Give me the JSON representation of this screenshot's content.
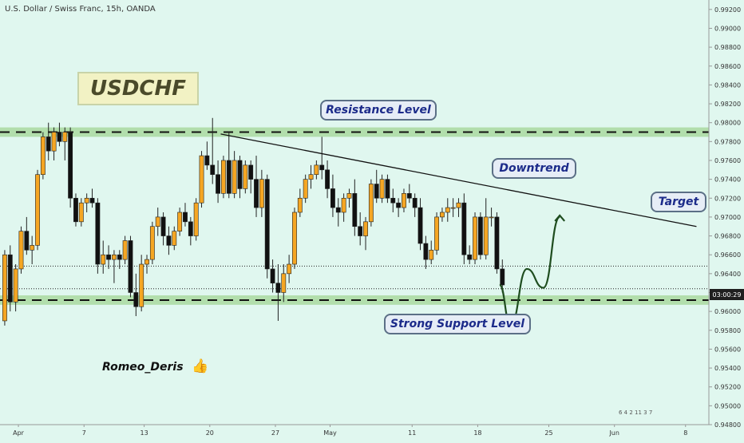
{
  "header": {
    "title": "U.S. Dollar / Swiss Franc, 15h, OANDA"
  },
  "annotations": {
    "symbol_box": "USDCHF",
    "resistance": "Resistance Level",
    "downtrend": "Downtrend",
    "target": "Target",
    "support": "Strong Support Level",
    "author": "Romeo_Deris",
    "thumb_icon": "thumbs-up-icon",
    "price_tag": "03:00:29",
    "watermark": "6 4 2 11 3 7"
  },
  "colors": {
    "background": "#e0f7ef",
    "up_candle": "#f5a623",
    "down_candle": "#111111",
    "zone_fill": "#a9d9a0",
    "trend_line": "#111111",
    "projection": "#1f4d1f"
  },
  "chart_data": {
    "type": "candlestick",
    "title": "U.S. Dollar / Swiss Franc, 15h, OANDA",
    "ylim": [
      0.948,
      0.993
    ],
    "yticks": [
      "0.99200",
      "0.99000",
      "0.98800",
      "0.98600",
      "0.98400",
      "0.98200",
      "0.98000",
      "0.97800",
      "0.97600",
      "0.97400",
      "0.97200",
      "0.97000",
      "0.96800",
      "0.96600",
      "0.96400",
      "0.96200",
      "0.96000",
      "0.95800",
      "0.95600",
      "0.95400",
      "0.95200",
      "0.95000",
      "0.94800"
    ],
    "xticks": [
      {
        "label": "Apr",
        "bar": 3
      },
      {
        "label": "7",
        "bar": 15
      },
      {
        "label": "13",
        "bar": 26
      },
      {
        "label": "20",
        "bar": 38
      },
      {
        "label": "27",
        "bar": 50
      },
      {
        "label": "May",
        "bar": 60
      },
      {
        "label": "11",
        "bar": 75
      },
      {
        "label": "18",
        "bar": 87
      },
      {
        "label": "25",
        "bar": 100
      },
      {
        "label": "Jun",
        "bar": 112
      },
      {
        "label": "8",
        "bar": 125
      }
    ],
    "ohlc": [
      [
        0.959,
        0.9665,
        0.9585,
        0.966
      ],
      [
        0.966,
        0.967,
        0.96,
        0.961
      ],
      [
        0.961,
        0.965,
        0.96,
        0.9645
      ],
      [
        0.9645,
        0.969,
        0.964,
        0.9685
      ],
      [
        0.9685,
        0.97,
        0.966,
        0.9665
      ],
      [
        0.9665,
        0.968,
        0.965,
        0.967
      ],
      [
        0.967,
        0.975,
        0.9665,
        0.9745
      ],
      [
        0.9745,
        0.979,
        0.974,
        0.9785
      ],
      [
        0.9785,
        0.98,
        0.976,
        0.977
      ],
      [
        0.977,
        0.9795,
        0.976,
        0.979
      ],
      [
        0.979,
        0.98,
        0.9775,
        0.978
      ],
      [
        0.978,
        0.9795,
        0.976,
        0.979
      ],
      [
        0.979,
        0.9795,
        0.971,
        0.972
      ],
      [
        0.972,
        0.9725,
        0.969,
        0.9695
      ],
      [
        0.9695,
        0.972,
        0.969,
        0.9715
      ],
      [
        0.9715,
        0.9725,
        0.9705,
        0.972
      ],
      [
        0.972,
        0.973,
        0.971,
        0.9715
      ],
      [
        0.9715,
        0.972,
        0.964,
        0.965
      ],
      [
        0.965,
        0.9675,
        0.964,
        0.966
      ],
      [
        0.966,
        0.967,
        0.9645,
        0.9655
      ],
      [
        0.9655,
        0.9665,
        0.963,
        0.966
      ],
      [
        0.966,
        0.9665,
        0.9645,
        0.9655
      ],
      [
        0.9655,
        0.968,
        0.965,
        0.9675
      ],
      [
        0.9675,
        0.968,
        0.9615,
        0.962
      ],
      [
        0.962,
        0.964,
        0.9595,
        0.9605
      ],
      [
        0.9605,
        0.966,
        0.96,
        0.965
      ],
      [
        0.965,
        0.966,
        0.964,
        0.9655
      ],
      [
        0.9655,
        0.9695,
        0.965,
        0.969
      ],
      [
        0.969,
        0.971,
        0.968,
        0.97
      ],
      [
        0.97,
        0.9705,
        0.967,
        0.968
      ],
      [
        0.968,
        0.969,
        0.966,
        0.967
      ],
      [
        0.967,
        0.969,
        0.9665,
        0.9685
      ],
      [
        0.9685,
        0.971,
        0.968,
        0.9705
      ],
      [
        0.9705,
        0.9715,
        0.969,
        0.9695
      ],
      [
        0.9695,
        0.97,
        0.967,
        0.968
      ],
      [
        0.968,
        0.972,
        0.9675,
        0.9715
      ],
      [
        0.9715,
        0.977,
        0.971,
        0.9765
      ],
      [
        0.9765,
        0.978,
        0.975,
        0.9755
      ],
      [
        0.9755,
        0.9805,
        0.9735,
        0.9745
      ],
      [
        0.9745,
        0.976,
        0.9715,
        0.9725
      ],
      [
        0.9725,
        0.9765,
        0.972,
        0.976
      ],
      [
        0.976,
        0.979,
        0.972,
        0.9725
      ],
      [
        0.9725,
        0.977,
        0.972,
        0.976
      ],
      [
        0.976,
        0.9765,
        0.972,
        0.973
      ],
      [
        0.973,
        0.976,
        0.9725,
        0.9755
      ],
      [
        0.9755,
        0.976,
        0.9725,
        0.974
      ],
      [
        0.974,
        0.9765,
        0.97,
        0.971
      ],
      [
        0.971,
        0.975,
        0.97,
        0.974
      ],
      [
        0.974,
        0.9745,
        0.9635,
        0.9645
      ],
      [
        0.9645,
        0.9655,
        0.962,
        0.963
      ],
      [
        0.963,
        0.965,
        0.959,
        0.962
      ],
      [
        0.962,
        0.965,
        0.961,
        0.964
      ],
      [
        0.964,
        0.966,
        0.963,
        0.965
      ],
      [
        0.965,
        0.971,
        0.9645,
        0.9705
      ],
      [
        0.9705,
        0.973,
        0.97,
        0.972
      ],
      [
        0.972,
        0.9745,
        0.9715,
        0.974
      ],
      [
        0.974,
        0.9755,
        0.973,
        0.9745
      ],
      [
        0.9745,
        0.976,
        0.974,
        0.9755
      ],
      [
        0.9755,
        0.9785,
        0.974,
        0.975
      ],
      [
        0.975,
        0.976,
        0.972,
        0.973
      ],
      [
        0.973,
        0.9745,
        0.97,
        0.971
      ],
      [
        0.971,
        0.972,
        0.969,
        0.9705
      ],
      [
        0.9705,
        0.9725,
        0.9695,
        0.972
      ],
      [
        0.972,
        0.973,
        0.971,
        0.9725
      ],
      [
        0.9725,
        0.974,
        0.968,
        0.969
      ],
      [
        0.969,
        0.9705,
        0.967,
        0.968
      ],
      [
        0.968,
        0.97,
        0.9665,
        0.9695
      ],
      [
        0.9695,
        0.974,
        0.969,
        0.9735
      ],
      [
        0.9735,
        0.975,
        0.9715,
        0.972
      ],
      [
        0.972,
        0.9745,
        0.9715,
        0.974
      ],
      [
        0.974,
        0.9745,
        0.9715,
        0.972
      ],
      [
        0.972,
        0.973,
        0.9705,
        0.9715
      ],
      [
        0.9715,
        0.972,
        0.97,
        0.971
      ],
      [
        0.971,
        0.973,
        0.9705,
        0.9725
      ],
      [
        0.9725,
        0.9735,
        0.9715,
        0.972
      ],
      [
        0.972,
        0.9725,
        0.97,
        0.971
      ],
      [
        0.971,
        0.972,
        0.9665,
        0.9672
      ],
      [
        0.9672,
        0.968,
        0.9645,
        0.9655
      ],
      [
        0.9655,
        0.9675,
        0.965,
        0.9665
      ],
      [
        0.9665,
        0.9705,
        0.966,
        0.97
      ],
      [
        0.97,
        0.971,
        0.9695,
        0.9705
      ],
      [
        0.9705,
        0.972,
        0.9695,
        0.971
      ],
      [
        0.971,
        0.972,
        0.97,
        0.971
      ],
      [
        0.971,
        0.972,
        0.97,
        0.9715
      ],
      [
        0.9715,
        0.9725,
        0.965,
        0.966
      ],
      [
        0.966,
        0.967,
        0.965,
        0.9655
      ],
      [
        0.9655,
        0.9705,
        0.965,
        0.97
      ],
      [
        0.97,
        0.9705,
        0.9655,
        0.966
      ],
      [
        0.966,
        0.972,
        0.9655,
        0.97
      ],
      [
        0.97,
        0.971,
        0.969,
        0.97
      ],
      [
        0.97,
        0.9705,
        0.964,
        0.9645
      ],
      [
        0.9645,
        0.9655,
        0.962,
        0.9628
      ]
    ],
    "zones": [
      {
        "name": "Resistance Level",
        "low": 0.9785,
        "high": 0.9795
      },
      {
        "name": "Strong Support Level",
        "low": 0.9607,
        "high": 0.9617
      }
    ],
    "hlines": [
      0.9648,
      0.9624
    ],
    "trendline": {
      "from": {
        "bar": 40,
        "price": 0.9788
      },
      "to": {
        "bar": 127,
        "price": 0.969
      }
    },
    "projection": [
      {
        "bar": 91,
        "price": 0.9628
      },
      {
        "bar": 93,
        "price": 0.9585
      },
      {
        "bar": 96,
        "price": 0.9645
      },
      {
        "bar": 99,
        "price": 0.9625
      },
      {
        "bar": 102,
        "price": 0.97
      }
    ],
    "last_price": 0.9624
  }
}
